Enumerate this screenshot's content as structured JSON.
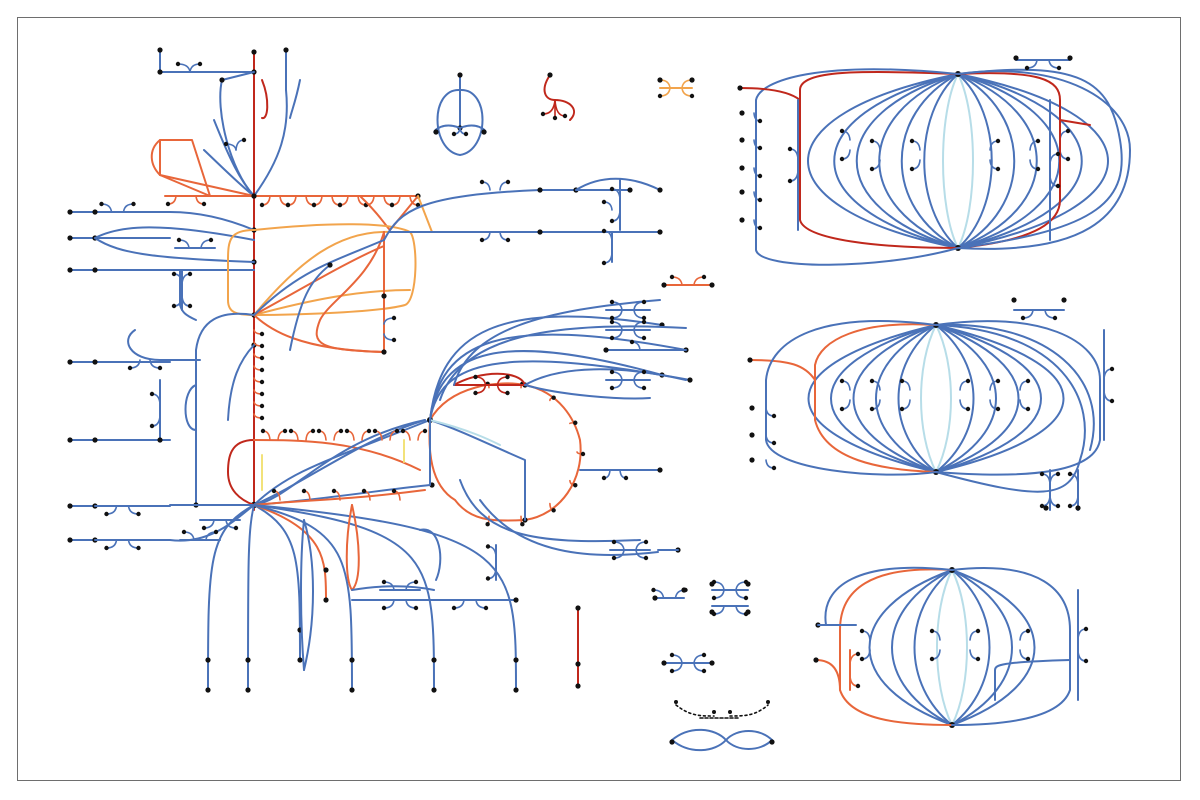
{
  "diagram": {
    "type": "metabolic-pathway-network",
    "colors": {
      "blue": "#4a72b8",
      "dark_red": "#c0281c",
      "orange_red": "#e8663a",
      "orange": "#f2a44c",
      "light_blue": "#b7dde8",
      "yellow": "#f2e27a",
      "node": "#111111",
      "frame": "#6e6e6e"
    },
    "panels": [
      "main-network",
      "top-right-cluster",
      "middle-right-cluster",
      "bottom-right-cluster",
      "small-isolated-reactions"
    ],
    "icons": [
      "metabolite-node-dot",
      "reaction-edge"
    ]
  }
}
